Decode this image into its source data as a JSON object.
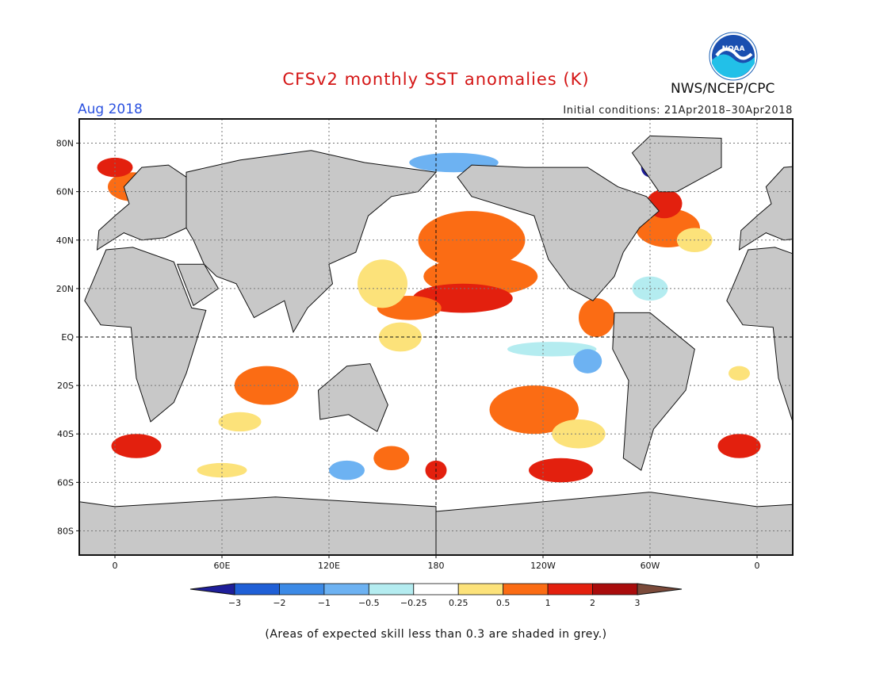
{
  "header": {
    "title": "CFSv2 monthly SST anomalies (K)",
    "month": "Aug 2018",
    "initial_conditions": "Initial conditions: 21Apr2018–30Apr2018",
    "org": "NWS/NCEP/CPC",
    "logo_text": "NOAA"
  },
  "map": {
    "lat_labels": [
      "80N",
      "60N",
      "40N",
      "20N",
      "EQ",
      "20S",
      "40S",
      "60S",
      "80S"
    ],
    "lon_labels": [
      "0",
      "60E",
      "120E",
      "180",
      "120W",
      "60W",
      "0"
    ],
    "lat_values": [
      80,
      60,
      40,
      20,
      0,
      -20,
      -40,
      -60,
      -80
    ],
    "lon_values": [
      0,
      60,
      120,
      180,
      240,
      300,
      360
    ],
    "lon_range": [
      -20,
      380
    ],
    "lat_range": [
      -90,
      90
    ],
    "land_color": "#c8c8c8",
    "low_skill_color": "#c8c8c8"
  },
  "legend": {
    "labels": [
      "−3",
      "−2",
      "−1",
      "−0.5",
      "−0.25",
      "0.25",
      "0.5",
      "1",
      "2",
      "3"
    ],
    "colors": [
      "#1e1e9a",
      "#1f5fd6",
      "#3c8ae6",
      "#6db2f2",
      "#b4ecf0",
      "#ffffff",
      "#fce27a",
      "#fb6c14",
      "#e3200e",
      "#a90c0c",
      "#7b4a3a"
    ]
  },
  "footer": {
    "note": "(Areas of expected skill less than 0.3 are shaded in grey.)"
  }
}
